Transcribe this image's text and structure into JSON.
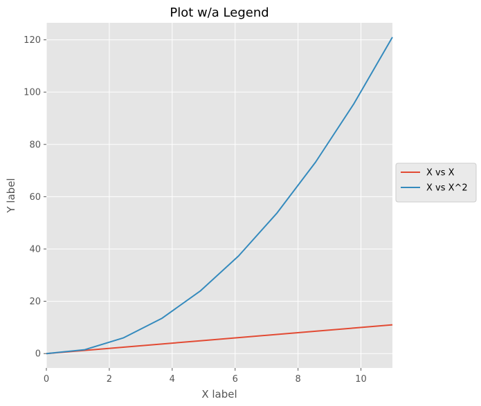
{
  "chart_data": {
    "type": "line",
    "title": "Plot w/a Legend",
    "xlabel": "X label",
    "ylabel": "Y label",
    "xlim": [
      0,
      11
    ],
    "ylim": [
      -5.5,
      126.5
    ],
    "xticks": [
      0,
      2,
      4,
      6,
      8,
      10
    ],
    "yticks": [
      0,
      20,
      40,
      60,
      80,
      100,
      120
    ],
    "grid": true,
    "legend_position": "center-right-outside",
    "series": [
      {
        "name": "X vs X",
        "color": "#E24A33",
        "x": [
          0,
          1.222,
          2.444,
          3.667,
          4.889,
          6.111,
          7.333,
          8.556,
          9.778,
          11
        ],
        "y": [
          0,
          1.222,
          2.444,
          3.667,
          4.889,
          6.111,
          7.333,
          8.556,
          9.778,
          11
        ]
      },
      {
        "name": "X vs X^2",
        "color": "#348ABD",
        "x": [
          0,
          1.222,
          2.444,
          3.667,
          4.889,
          6.111,
          7.333,
          8.556,
          9.778,
          11
        ],
        "y": [
          0,
          1.49,
          5.98,
          13.44,
          23.9,
          37.35,
          53.78,
          73.2,
          95.6,
          121
        ]
      }
    ]
  }
}
